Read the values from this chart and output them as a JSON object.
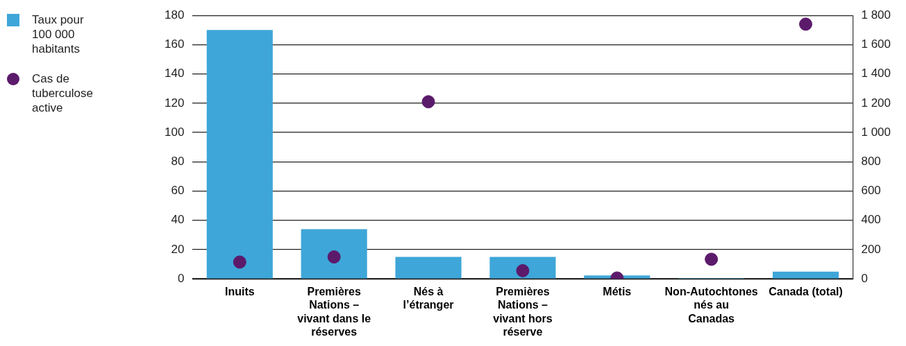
{
  "chart_data": {
    "type": "bar",
    "categories": [
      "Inuits",
      "Premières Nations – vivant dans le réserves",
      "Nés à l’étranger",
      "Premières Nations – vivant hors réserve",
      "Métis",
      "Non-Autochtones nés au Canadas",
      "Canada (total)"
    ],
    "series": [
      {
        "name": "Taux pour 100 000 habitants",
        "color": "#3ea6d8",
        "values": [
          170,
          34,
          15,
          15,
          2.3,
          0.6,
          4.9
        ]
      },
      {
        "name": "Cas de tuberculose active",
        "type": "scatter",
        "axis": "y2",
        "color": "#5c1a6b",
        "marker": "circle",
        "values": [
          115,
          150,
          1210,
          56,
          6,
          134,
          1740
        ]
      }
    ],
    "ylim": [
      0,
      180
    ],
    "yticks": [
      0,
      20,
      40,
      60,
      80,
      100,
      120,
      140,
      160,
      180
    ],
    "y2lim": [
      0,
      1800
    ],
    "y2ticks": [
      0,
      200,
      400,
      600,
      800,
      {
        "value": 1000,
        "label": "1 000"
      },
      {
        "value": 1200,
        "label": "1 200"
      },
      {
        "value": 1400,
        "label": "1 400"
      },
      {
        "value": 1600,
        "label": "1 600"
      },
      {
        "value": 1800,
        "label": "1 800"
      }
    ],
    "grid": "y",
    "legend": "left"
  }
}
